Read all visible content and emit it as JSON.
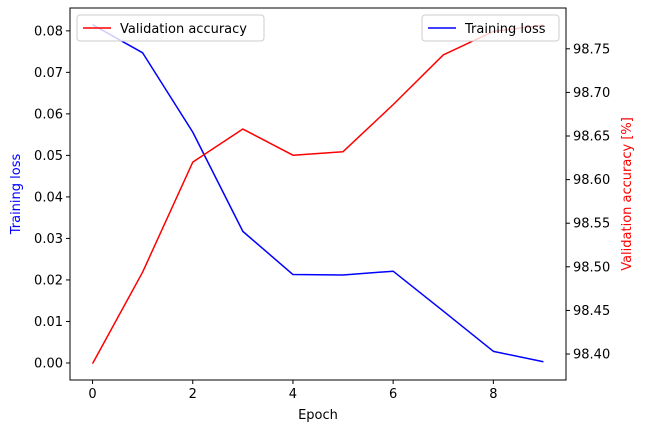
{
  "chart_data": {
    "type": "line",
    "x": [
      0,
      1,
      2,
      3,
      4,
      5,
      6,
      7,
      8,
      9
    ],
    "xlabel": "Epoch",
    "xlim": [
      -0.45,
      9.45
    ],
    "xticks": [
      0,
      2,
      4,
      6,
      8
    ],
    "grid": false,
    "axes": {
      "left": {
        "label": "Training loss",
        "color": "#0000ff",
        "ylim": [
          -0.0041,
          0.0855
        ],
        "ticks": [
          0.0,
          0.01,
          0.02,
          0.03,
          0.04,
          0.05,
          0.06,
          0.07,
          0.08
        ],
        "tick_labels": [
          "0.00",
          "0.01",
          "0.02",
          "0.03",
          "0.04",
          "0.05",
          "0.06",
          "0.07",
          "0.08"
        ]
      },
      "right": {
        "label": "Validation accuracy [%]",
        "color": "#ff0000",
        "ylim": [
          98.3702,
          98.7968
        ],
        "ticks": [
          98.4,
          98.45,
          98.5,
          98.55,
          98.6,
          98.65,
          98.7,
          98.75
        ],
        "tick_labels": [
          "98.40",
          "98.45",
          "98.50",
          "98.55",
          "98.60",
          "98.65",
          "98.70",
          "98.75"
        ]
      }
    },
    "series": [
      {
        "name": "Training loss",
        "axis": "left",
        "color": "#0000ff",
        "values": [
          0.0815,
          0.0747,
          0.0556,
          0.0317,
          0.0213,
          0.0212,
          0.0221,
          0.0125,
          0.0028,
          0.0003
        ],
        "legend_position": "upper right"
      },
      {
        "name": "Validation accuracy",
        "axis": "right",
        "color": "#ff0000",
        "values": [
          98.389,
          98.494,
          98.62,
          98.658,
          98.628,
          98.632,
          98.686,
          98.743,
          98.77,
          98.777
        ],
        "legend_position": "upper left"
      }
    ]
  }
}
